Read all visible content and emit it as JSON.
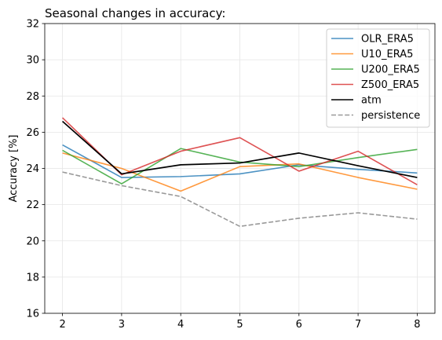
{
  "chart_data": {
    "type": "line",
    "title": "Seasonal changes in accuracy:",
    "xlabel": "",
    "ylabel": "Accuracy [%]",
    "x": [
      2,
      3,
      4,
      5,
      6,
      7,
      8
    ],
    "xlim": [
      1.7,
      8.3
    ],
    "ylim": [
      16,
      32
    ],
    "xticks": [
      2,
      3,
      4,
      5,
      6,
      7,
      8
    ],
    "yticks": [
      16,
      18,
      20,
      22,
      24,
      26,
      28,
      30,
      32
    ],
    "grid": true,
    "legend_position": "top-right",
    "series": [
      {
        "name": "OLR_ERA5",
        "color": "#1f77b4",
        "dash": "solid",
        "values": [
          25.3,
          23.5,
          23.55,
          23.7,
          24.2,
          23.95,
          23.75
        ]
      },
      {
        "name": "U10_ERA5",
        "color": "#ff7f0e",
        "dash": "solid",
        "values": [
          24.85,
          24.0,
          22.75,
          24.1,
          24.25,
          23.5,
          22.85
        ]
      },
      {
        "name": "U200_ERA5",
        "color": "#2ca02c",
        "dash": "solid",
        "values": [
          25.0,
          23.15,
          25.1,
          24.35,
          24.1,
          24.6,
          25.05
        ]
      },
      {
        "name": "Z500_ERA5",
        "color": "#d62728",
        "dash": "solid",
        "values": [
          26.8,
          23.65,
          24.95,
          25.7,
          23.85,
          24.95,
          23.1
        ]
      },
      {
        "name": "atm",
        "color": "#000000",
        "dash": "solid",
        "values": [
          26.6,
          23.7,
          24.2,
          24.3,
          24.85,
          24.15,
          23.5
        ]
      },
      {
        "name": "persistence",
        "color": "#7f7f7f",
        "dash": "dashed",
        "values": [
          23.8,
          23.05,
          22.45,
          20.8,
          21.25,
          21.55,
          21.2
        ]
      }
    ]
  }
}
